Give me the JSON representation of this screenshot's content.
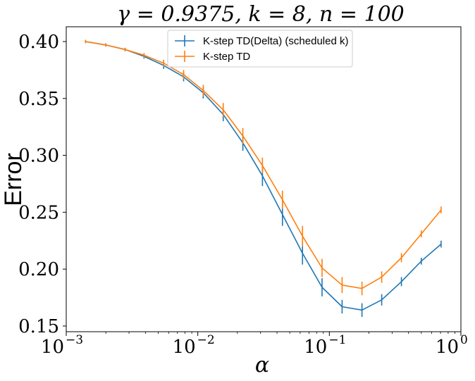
{
  "chart_data": {
    "type": "line",
    "title": "γ = 0.9375, k = 8, n = 100",
    "xlabel": "α",
    "ylabel": "Error",
    "xscale": "log",
    "xlim": [
      0.001,
      1
    ],
    "ylim": [
      0.145,
      0.413
    ],
    "x_ticks": [
      {
        "base": "10",
        "exp": "−3"
      },
      {
        "base": "10",
        "exp": "−2"
      },
      {
        "base": "10",
        "exp": "−1"
      },
      {
        "base": "10",
        "exp": "0"
      }
    ],
    "y_ticks": [
      "0.15",
      "0.20",
      "0.25",
      "0.30",
      "0.35",
      "0.40"
    ],
    "legend_position": "top-center",
    "x": [
      0.0014,
      0.002,
      0.0028,
      0.0039,
      0.0055,
      0.0078,
      0.011,
      0.0156,
      0.022,
      0.031,
      0.044,
      0.0625,
      0.088,
      0.125,
      0.177,
      0.25,
      0.353,
      0.5,
      0.707
    ],
    "series": [
      {
        "name": "K-step TD(Delta) (scheduled k)",
        "color": "#1f77b4",
        "values": [
          0.4,
          0.397,
          0.393,
          0.387,
          0.379,
          0.369,
          0.355,
          0.336,
          0.311,
          0.282,
          0.248,
          0.214,
          0.184,
          0.167,
          0.164,
          0.173,
          0.189,
          0.207,
          0.222
        ],
        "errors": [
          0.001,
          0.001,
          0.001,
          0.002,
          0.003,
          0.004,
          0.005,
          0.006,
          0.007,
          0.009,
          0.01,
          0.01,
          0.008,
          0.006,
          0.006,
          0.005,
          0.004,
          0.003,
          0.003
        ]
      },
      {
        "name": "K-step TD",
        "color": "#ff7f0e",
        "values": [
          0.4,
          0.397,
          0.393,
          0.388,
          0.381,
          0.371,
          0.357,
          0.34,
          0.317,
          0.291,
          0.261,
          0.229,
          0.201,
          0.186,
          0.183,
          0.193,
          0.21,
          0.231,
          0.252
        ],
        "errors": [
          0.001,
          0.001,
          0.001,
          0.002,
          0.003,
          0.004,
          0.005,
          0.006,
          0.007,
          0.007,
          0.008,
          0.009,
          0.008,
          0.007,
          0.006,
          0.005,
          0.004,
          0.003,
          0.003
        ]
      }
    ]
  }
}
